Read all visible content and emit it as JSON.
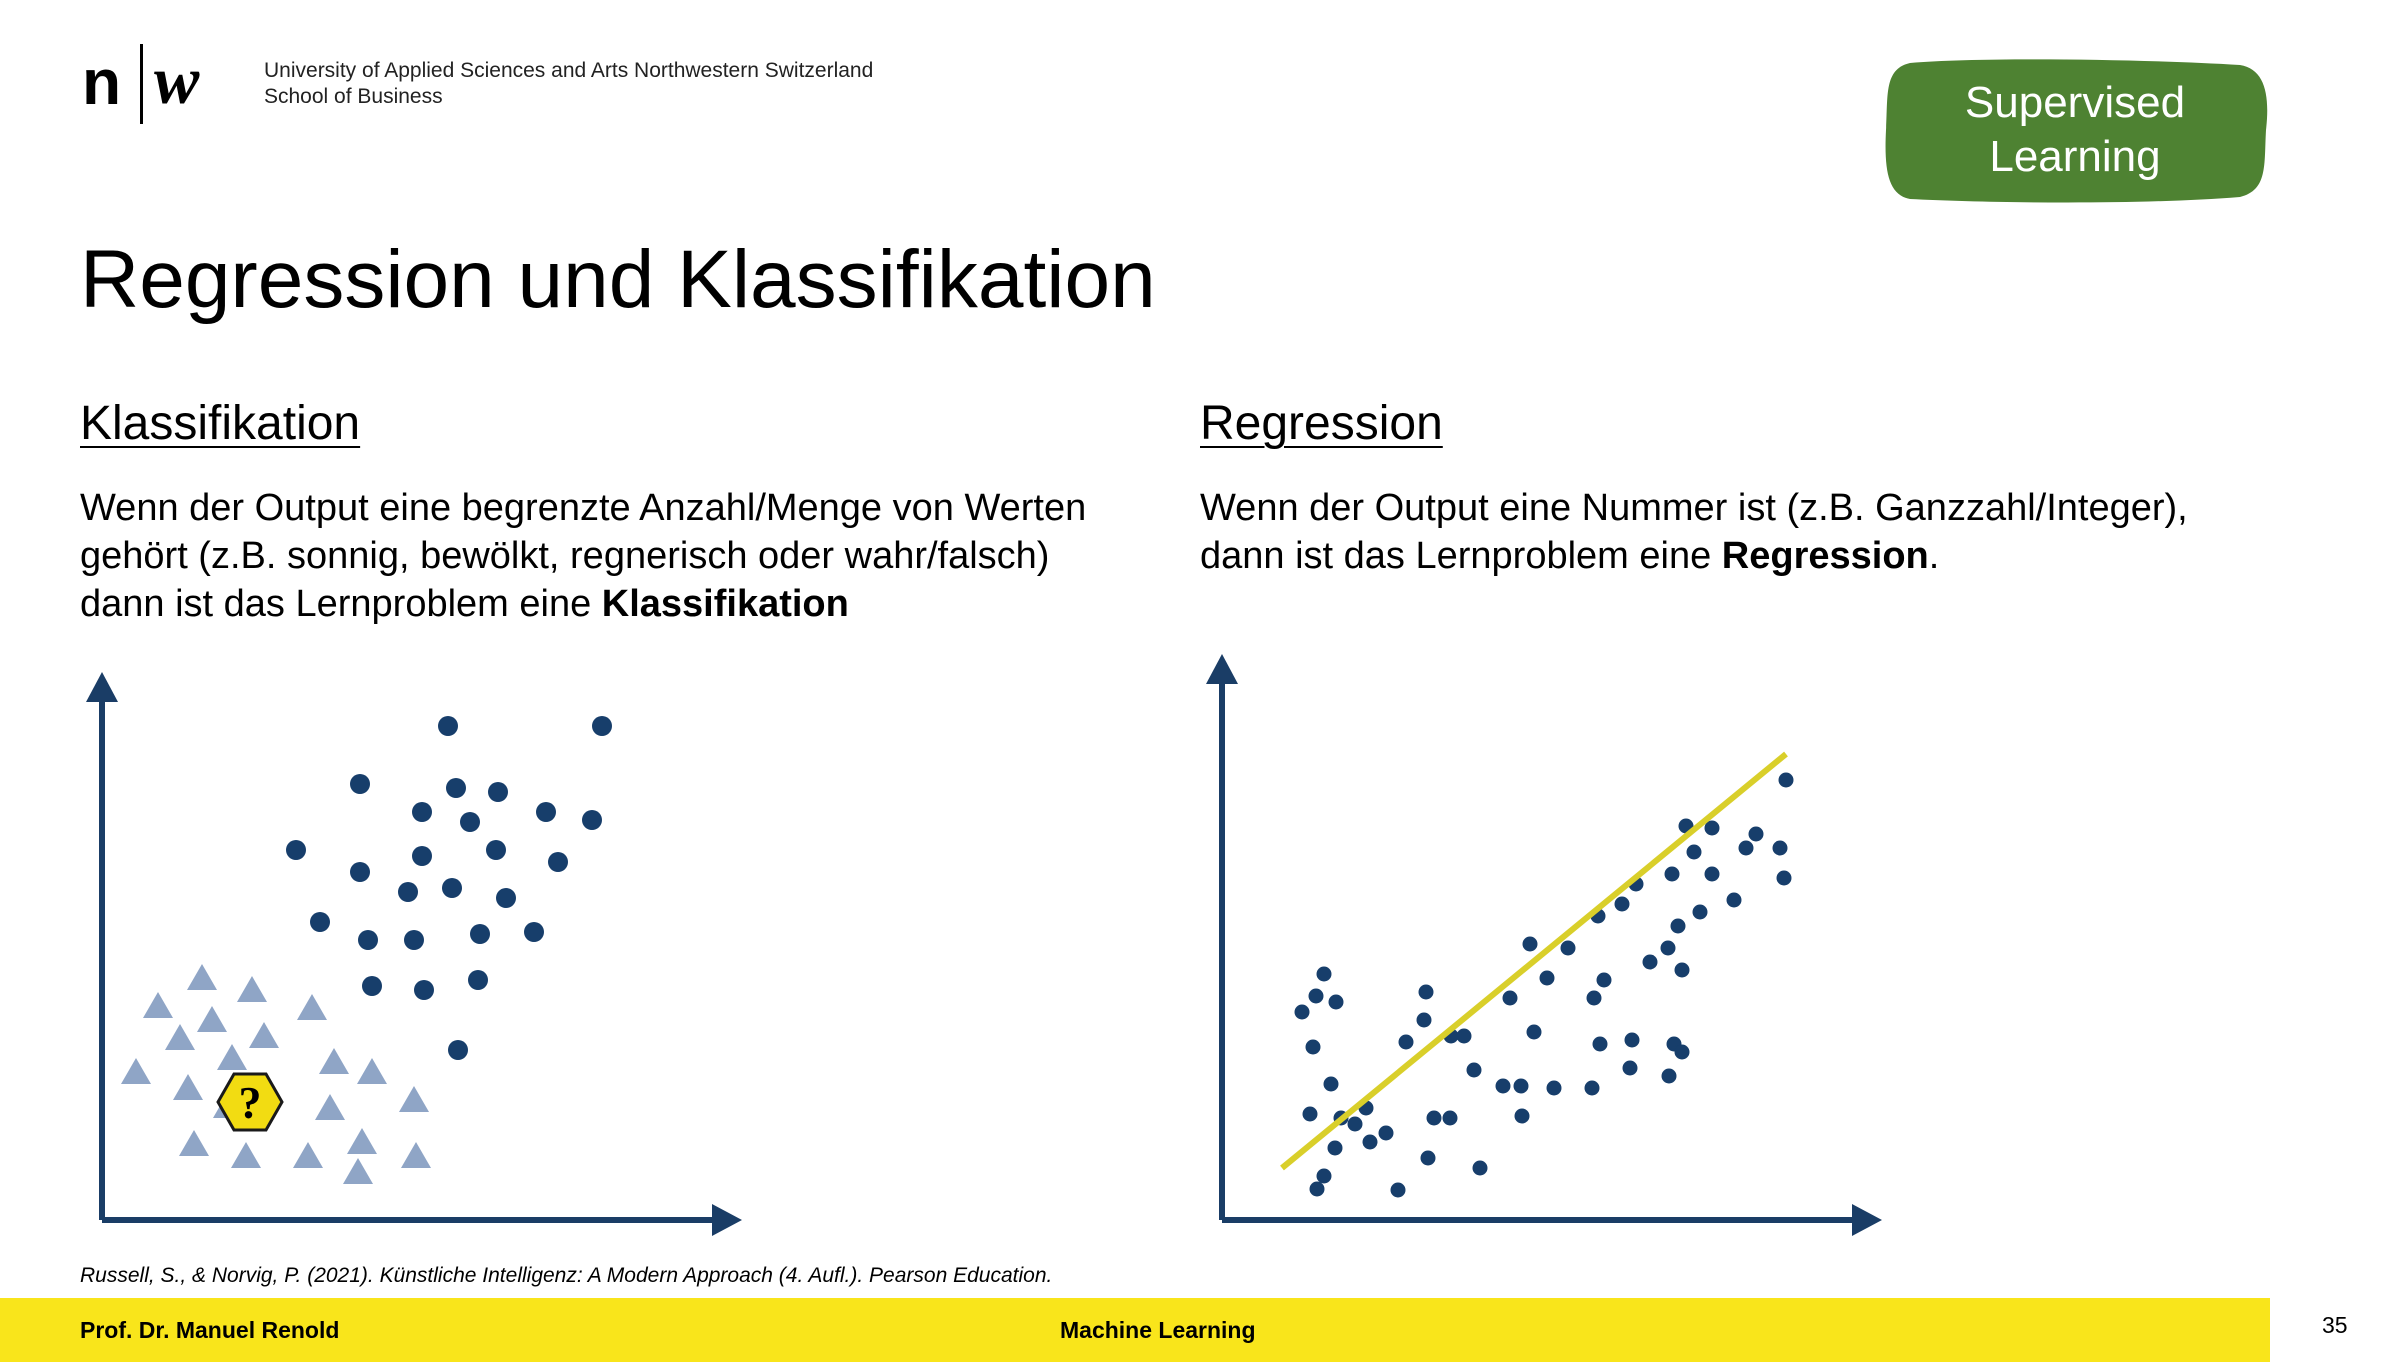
{
  "header": {
    "logo": {
      "n": "n",
      "w": "w"
    },
    "org_line1": "University of Applied Sciences and Arts Northwestern Switzerland",
    "org_line2": "School of Business",
    "badge_line1": "Supervised",
    "badge_line2": "Learning",
    "badge_color": "#4e8232"
  },
  "slide": {
    "title": "Regression und Klassifikation",
    "left": {
      "heading": "Klassifikation",
      "line1": "Wenn der Output eine begrenzte Anzahl/Menge von Werten",
      "line2": "gehört (z.B. sonnig, bewölkt, regnerisch oder wahr/falsch)",
      "line3_prefix": "dann ist das Lernproblem eine ",
      "line3_bold": "Klassifikation"
    },
    "right": {
      "heading": "Regression",
      "line1": "Wenn der Output eine Nummer ist (z.B. Ganzzahl/Integer),",
      "line2_prefix": "dann ist das Lernproblem eine ",
      "line2_bold": "Regression",
      "line2_suffix": "."
    },
    "unknown_marker": "?",
    "citation": "Russell, S., & Norvig, P. (2021). Künstliche Intelligenz: A Modern Approach (4. Aufl.). Pearson Education."
  },
  "colors": {
    "axis": "#1a3d66",
    "dot": "#173e6b",
    "triangle": "#8fa5c6",
    "regression_line": "#d9cf2a",
    "unknown_fill": "#f2dc12",
    "footer": "#f9e51b"
  },
  "footer": {
    "author": "Prof. Dr. Manuel Renold",
    "course": "Machine Learning",
    "page": "35"
  }
}
